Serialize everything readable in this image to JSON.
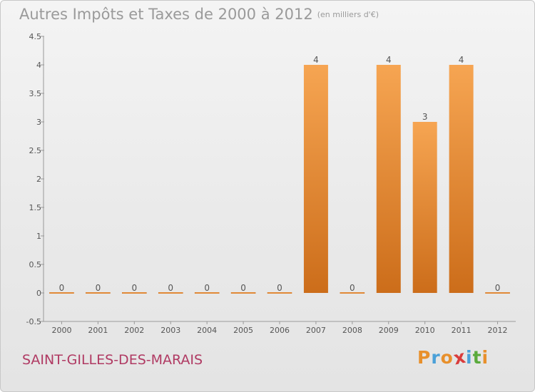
{
  "header": {
    "title": "Autres Impôts et Taxes de 2000 à 2012",
    "subtitle": "(en milliers d'€)"
  },
  "footer": {
    "place": "SAINT-GILLES-DES-MARAIS",
    "logo_letters": [
      "P",
      "r",
      "o",
      "x",
      "i",
      "t",
      "i"
    ],
    "logo_colors": [
      "#e8902c",
      "#4aa0d8",
      "#e8902c",
      "#d93c3c",
      "#4aa0d8",
      "#5aaa3c",
      "#e8902c"
    ]
  },
  "colors": {
    "bar_top": "#f6a552",
    "bar_bottom": "#cc6d1a",
    "axis": "#999999",
    "tick_text": "#555555",
    "grid_line": "#d9d9d9"
  },
  "chart_data": {
    "type": "bar",
    "title": "Autres Impôts et Taxes de 2000 à 2012",
    "subtitle": "(en milliers d'€)",
    "categories": [
      "2000",
      "2001",
      "2002",
      "2003",
      "2004",
      "2005",
      "2006",
      "2007",
      "2008",
      "2009",
      "2010",
      "2011",
      "2012"
    ],
    "values": [
      0,
      0,
      0,
      0,
      0,
      0,
      0,
      4,
      0,
      4,
      3,
      4,
      0
    ],
    "data_labels": [
      "0",
      "0",
      "0",
      "0",
      "0",
      "0",
      "0",
      "4",
      "0",
      "4",
      "3",
      "4",
      "0"
    ],
    "ylim": [
      -0.5,
      4.5
    ],
    "yticks": [
      -0.5,
      0,
      0.5,
      1,
      1.5,
      2,
      2.5,
      3,
      3.5,
      4,
      4.5
    ],
    "ytick_labels": [
      "-0.5",
      "0",
      "0.5",
      "1",
      "1.5",
      "2",
      "2.5",
      "3",
      "3.5",
      "4",
      "4.5"
    ],
    "grid": false,
    "legend": "none"
  }
}
